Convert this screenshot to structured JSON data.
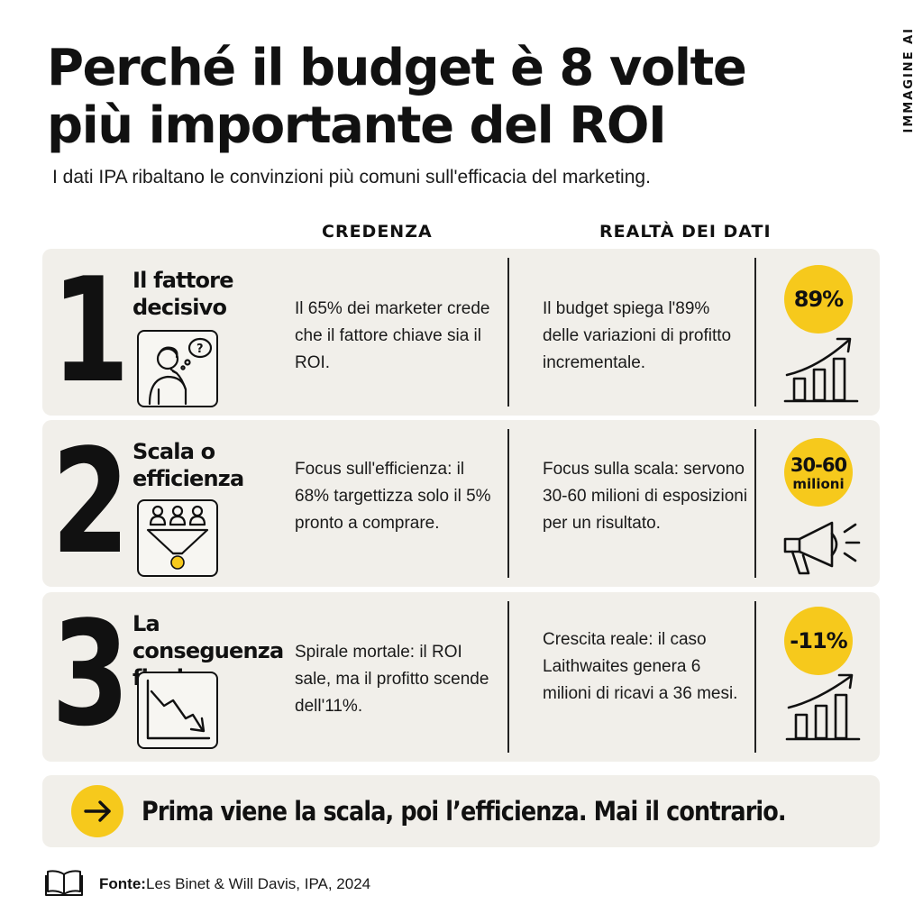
{
  "side_tag": "IMMAGINE AI",
  "title": {
    "line1": "Perché il budget è 8 volte",
    "line2": "più importante del ROI"
  },
  "subtitle": "I dati IPA ribaltano le convinzioni più comuni sull'efficacia del marketing.",
  "columns": {
    "belief": "CREDENZA",
    "reality": "REALTÀ  DEI DATI"
  },
  "rows": [
    {
      "number": "1",
      "title": "Il fattore decisivo",
      "icon": "thinking-person-icon",
      "belief": "Il 65% dei marketer crede che il fattore chiave sia il ROI.",
      "reality": "Il budget spiega l'89% delle variazioni di profitto incrementale.",
      "badge_main": "89%",
      "badge_sub": "",
      "result_icon": "growth-bars-icon"
    },
    {
      "number": "2",
      "title": "Scala o efficienza",
      "icon": "funnel-people-icon",
      "belief": "Focus sull'efficienza: il 68% targettizza solo il 5% pronto a comprare.",
      "reality": "Focus sulla scala: servono 30-60 milioni di esposizioni per un risultato.",
      "badge_main": "30-60",
      "badge_sub": "milioni",
      "result_icon": "megaphone-icon"
    },
    {
      "number": "3",
      "title": "La conseguenza finale",
      "icon": "declining-chart-icon",
      "belief": "Spirale mortale: il ROI sale, ma il profitto scende dell'11%.",
      "reality": "Crescita reale: il caso Laithwaites genera 6 milioni di ricavi a 36 mesi.",
      "badge_main": "-11%",
      "badge_sub": "",
      "result_icon": "growth-bars-icon"
    }
  ],
  "conclusion": "Prima viene la scala, poi l’efficienza. Mai il contrario.",
  "source": {
    "label": "Fonte:",
    "text": "Les Binet & Will Davis, IPA, 2024"
  },
  "colors": {
    "accent": "#f6c91c",
    "panel": "#f1efea",
    "ink": "#111111"
  }
}
